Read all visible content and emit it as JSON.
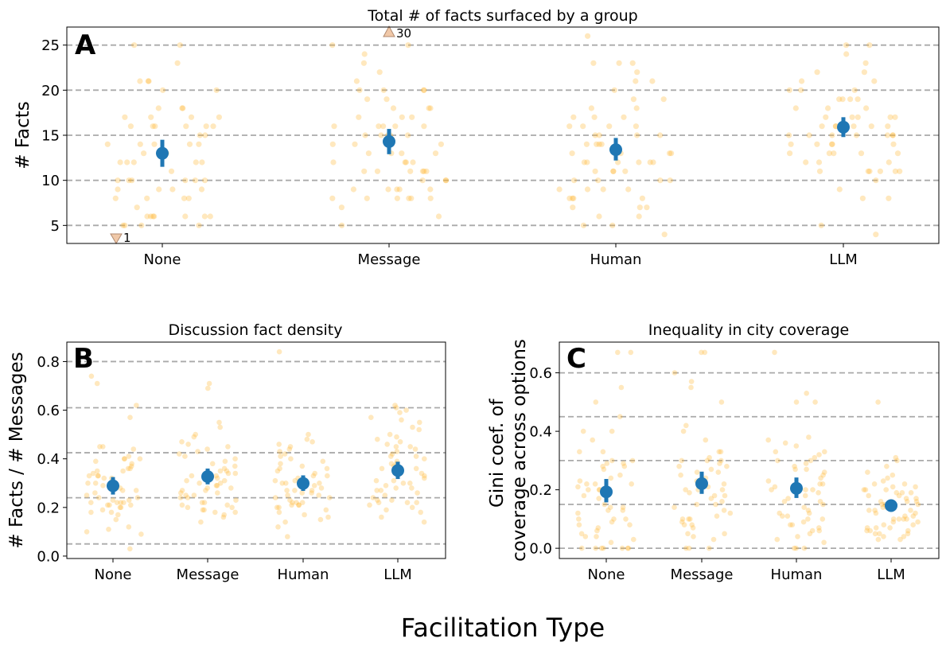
{
  "xlabel": "Facilitation Type",
  "colors": {
    "points": "#ffb836",
    "mean": "#1f77b4",
    "grid": "#aaaaaa",
    "outlier_marker": "#f0c8a8"
  },
  "chart_data": [
    {
      "id": "A",
      "type": "scatter",
      "title": "Total # of facts surfaced by a group",
      "ylabel": "# Facts",
      "ylim": [
        3,
        27
      ],
      "yticks": [
        5,
        10,
        15,
        20,
        25
      ],
      "ytick_labels": [
        "5",
        "10",
        "15",
        "20",
        "25"
      ],
      "gridlines": [
        5,
        10,
        15,
        20,
        25
      ],
      "categories": [
        "None",
        "Message",
        "Human",
        "LLM"
      ],
      "means": [
        13.0,
        14.3,
        13.4,
        15.9
      ],
      "ci": [
        [
          11.5,
          14.5
        ],
        [
          12.9,
          15.7
        ],
        [
          12.2,
          14.7
        ],
        [
          14.8,
          17.0
        ]
      ],
      "outliers": [
        {
          "category": "None",
          "value": 1,
          "label": "1",
          "direction": "down"
        },
        {
          "category": "Message",
          "value": 30,
          "label": "30",
          "direction": "up"
        }
      ],
      "points": [
        [
          25,
          21,
          23,
          17,
          18,
          18,
          17,
          16,
          16,
          15,
          14,
          13,
          12,
          12,
          11,
          10,
          10,
          10,
          10,
          9,
          9,
          9,
          8,
          8,
          7,
          6,
          6,
          6,
          6,
          6,
          5,
          5,
          5,
          5,
          21,
          20,
          20,
          18,
          17,
          16,
          16,
          15,
          14,
          14,
          13,
          12,
          10,
          10,
          9,
          8,
          8,
          6,
          6,
          25,
          21,
          17,
          16,
          16,
          14,
          14,
          12,
          12
        ],
        [
          25,
          25,
          24,
          23,
          22,
          21,
          20,
          19,
          18,
          18,
          17,
          17,
          16,
          16,
          16,
          15,
          15,
          15,
          15,
          14,
          14,
          13,
          13,
          13,
          12,
          12,
          12,
          11,
          11,
          11,
          11,
          10,
          10,
          9,
          9,
          9,
          8,
          8,
          8,
          8,
          7,
          6,
          5,
          20,
          20,
          20,
          19,
          18,
          17,
          16,
          16,
          15,
          14,
          13,
          12,
          11,
          11,
          10,
          9,
          9,
          8,
          8
        ],
        [
          26,
          23,
          23,
          22,
          21,
          20,
          19,
          19,
          18,
          17,
          17,
          16,
          16,
          16,
          15,
          15,
          15,
          14,
          14,
          14,
          13,
          13,
          13,
          12,
          12,
          12,
          12,
          11,
          11,
          11,
          10,
          10,
          10,
          9,
          9,
          9,
          8,
          8,
          8,
          7,
          7,
          7,
          6,
          6,
          5,
          5,
          4,
          17,
          16,
          15,
          14,
          13,
          12,
          12,
          11,
          10,
          9,
          8,
          23,
          21,
          18
        ],
        [
          25,
          25,
          24,
          23,
          22,
          22,
          21,
          21,
          20,
          20,
          19,
          19,
          18,
          18,
          17,
          17,
          17,
          16,
          16,
          16,
          16,
          15,
          15,
          15,
          15,
          15,
          14,
          14,
          14,
          14,
          14,
          13,
          13,
          13,
          13,
          12,
          12,
          11,
          11,
          11,
          11,
          10,
          9,
          8,
          8,
          5,
          4,
          20,
          19,
          19,
          18,
          17,
          16,
          15,
          13,
          12,
          11,
          11,
          17,
          16,
          16,
          15
        ]
      ]
    },
    {
      "id": "B",
      "type": "scatter",
      "title": "Discussion fact density",
      "ylabel": "# Facts / # Messages",
      "ylim": [
        -0.01,
        0.88
      ],
      "yticks": [
        0.0,
        0.2,
        0.4,
        0.6,
        0.8
      ],
      "ytick_labels": [
        "0.0",
        "0.2",
        "0.4",
        "0.6",
        "0.8"
      ],
      "gridlines": [
        0.05,
        0.24,
        0.425,
        0.61,
        0.8
      ],
      "categories": [
        "None",
        "Message",
        "Human",
        "LLM"
      ],
      "means": [
        0.289,
        0.327,
        0.299,
        0.352
      ],
      "ci": [
        [
          0.253,
          0.325
        ],
        [
          0.295,
          0.36
        ],
        [
          0.268,
          0.332
        ],
        [
          0.317,
          0.388
        ]
      ],
      "outliers": [],
      "points": [
        [
          0.74,
          0.71,
          0.62,
          0.57,
          0.45,
          0.45,
          0.44,
          0.41,
          0.4,
          0.4,
          0.39,
          0.38,
          0.37,
          0.36,
          0.35,
          0.34,
          0.33,
          0.33,
          0.32,
          0.32,
          0.31,
          0.3,
          0.29,
          0.28,
          0.27,
          0.26,
          0.25,
          0.24,
          0.23,
          0.23,
          0.22,
          0.22,
          0.22,
          0.21,
          0.21,
          0.2,
          0.2,
          0.19,
          0.18,
          0.17,
          0.15,
          0.12,
          0.11,
          0.1,
          0.09,
          0.03,
          0.36,
          0.33,
          0.3,
          0.27,
          0.24,
          0.21,
          0.18,
          0.4,
          0.35,
          0.28,
          0.22
        ],
        [
          0.71,
          0.69,
          0.55,
          0.53,
          0.5,
          0.49,
          0.47,
          0.46,
          0.45,
          0.44,
          0.43,
          0.42,
          0.41,
          0.4,
          0.39,
          0.38,
          0.37,
          0.36,
          0.35,
          0.35,
          0.34,
          0.33,
          0.32,
          0.31,
          0.31,
          0.3,
          0.29,
          0.28,
          0.28,
          0.27,
          0.26,
          0.26,
          0.25,
          0.24,
          0.23,
          0.22,
          0.22,
          0.21,
          0.2,
          0.19,
          0.18,
          0.18,
          0.17,
          0.16,
          0.14,
          0.33,
          0.3,
          0.27,
          0.24,
          0.21,
          0.19,
          0.34,
          0.29,
          0.25,
          0.2
        ],
        [
          0.84,
          0.5,
          0.48,
          0.47,
          0.46,
          0.45,
          0.44,
          0.43,
          0.42,
          0.41,
          0.4,
          0.39,
          0.38,
          0.37,
          0.36,
          0.35,
          0.34,
          0.33,
          0.32,
          0.31,
          0.3,
          0.3,
          0.29,
          0.28,
          0.27,
          0.27,
          0.26,
          0.25,
          0.25,
          0.24,
          0.23,
          0.22,
          0.22,
          0.21,
          0.21,
          0.2,
          0.2,
          0.19,
          0.18,
          0.17,
          0.16,
          0.15,
          0.14,
          0.12,
          0.08,
          0.33,
          0.3,
          0.27,
          0.24,
          0.21,
          0.36,
          0.31,
          0.26,
          0.22
        ],
        [
          0.62,
          0.61,
          0.6,
          0.59,
          0.57,
          0.56,
          0.55,
          0.53,
          0.52,
          0.5,
          0.49,
          0.48,
          0.47,
          0.46,
          0.45,
          0.44,
          0.43,
          0.42,
          0.41,
          0.4,
          0.39,
          0.38,
          0.37,
          0.36,
          0.35,
          0.34,
          0.33,
          0.32,
          0.31,
          0.3,
          0.3,
          0.29,
          0.28,
          0.27,
          0.26,
          0.25,
          0.24,
          0.23,
          0.22,
          0.22,
          0.21,
          0.2,
          0.19,
          0.18,
          0.16,
          0.14,
          0.41,
          0.36,
          0.31,
          0.27,
          0.23,
          0.45,
          0.38,
          0.28,
          0.22
        ]
      ]
    },
    {
      "id": "C",
      "type": "scatter",
      "title": "Inequality in city coverage",
      "ylabel": "Gini coef. of coverage across options",
      "ylim": [
        -0.035,
        0.705
      ],
      "yticks": [
        0.0,
        0.2,
        0.4,
        0.6
      ],
      "ytick_labels": [
        "0.0",
        "0.2",
        "0.4",
        "0.6"
      ],
      "gridlines": [
        0.0,
        0.15,
        0.3,
        0.45,
        0.6
      ],
      "categories": [
        "None",
        "Message",
        "Human",
        "LLM"
      ],
      "means": [
        0.193,
        0.221,
        0.205,
        0.146
      ],
      "ci": [
        [
          0.157,
          0.237
        ],
        [
          0.186,
          0.262
        ],
        [
          0.172,
          0.242
        ],
        [
          0.127,
          0.166
        ]
      ],
      "outliers": [],
      "points": [
        [
          0.67,
          0.67,
          0.55,
          0.5,
          0.45,
          0.4,
          0.4,
          0.37,
          0.33,
          0.33,
          0.3,
          0.29,
          0.29,
          0.28,
          0.27,
          0.25,
          0.24,
          0.23,
          0.22,
          0.22,
          0.21,
          0.2,
          0.2,
          0.18,
          0.17,
          0.15,
          0.14,
          0.13,
          0.13,
          0.12,
          0.1,
          0.1,
          0.09,
          0.08,
          0.07,
          0.06,
          0.05,
          0.04,
          0.04,
          0.03,
          0.02,
          0.0,
          0.0,
          0.0,
          0.0,
          0.0,
          0.0,
          0.28,
          0.22,
          0.14,
          0.08,
          0.0,
          0.3,
          0.2,
          0.1
        ],
        [
          0.67,
          0.67,
          0.6,
          0.57,
          0.55,
          0.5,
          0.42,
          0.4,
          0.37,
          0.33,
          0.33,
          0.31,
          0.3,
          0.3,
          0.29,
          0.28,
          0.27,
          0.26,
          0.25,
          0.24,
          0.23,
          0.22,
          0.21,
          0.2,
          0.2,
          0.19,
          0.18,
          0.17,
          0.16,
          0.15,
          0.14,
          0.13,
          0.12,
          0.11,
          0.1,
          0.1,
          0.09,
          0.08,
          0.07,
          0.05,
          0.04,
          0.03,
          0.0,
          0.0,
          0.0,
          0.3,
          0.26,
          0.2,
          0.15,
          0.1,
          0.05,
          0.28,
          0.18,
          0.08
        ],
        [
          0.67,
          0.53,
          0.5,
          0.5,
          0.38,
          0.37,
          0.36,
          0.35,
          0.33,
          0.32,
          0.31,
          0.3,
          0.29,
          0.28,
          0.27,
          0.26,
          0.25,
          0.24,
          0.23,
          0.22,
          0.21,
          0.2,
          0.2,
          0.19,
          0.18,
          0.17,
          0.16,
          0.15,
          0.14,
          0.13,
          0.12,
          0.12,
          0.11,
          0.1,
          0.1,
          0.09,
          0.08,
          0.08,
          0.07,
          0.06,
          0.05,
          0.04,
          0.03,
          0.02,
          0.0,
          0.0,
          0.0,
          0.33,
          0.27,
          0.22,
          0.16,
          0.11,
          0.06,
          0.3,
          0.2
        ],
        [
          0.5,
          0.31,
          0.3,
          0.28,
          0.26,
          0.25,
          0.24,
          0.23,
          0.22,
          0.21,
          0.21,
          0.2,
          0.19,
          0.19,
          0.18,
          0.18,
          0.17,
          0.17,
          0.16,
          0.16,
          0.15,
          0.15,
          0.14,
          0.14,
          0.13,
          0.13,
          0.12,
          0.12,
          0.11,
          0.11,
          0.1,
          0.1,
          0.09,
          0.09,
          0.08,
          0.08,
          0.07,
          0.07,
          0.06,
          0.06,
          0.05,
          0.05,
          0.04,
          0.04,
          0.03,
          0.03,
          0.22,
          0.19,
          0.16,
          0.13,
          0.1,
          0.07,
          0.05,
          0.2,
          0.15,
          0.1,
          0.06,
          0.2
        ]
      ]
    }
  ]
}
